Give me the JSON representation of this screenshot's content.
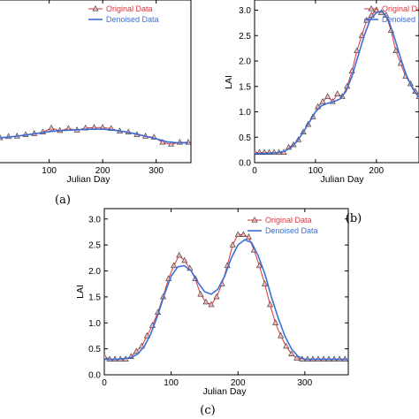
{
  "colors": {
    "original": "#e0303a",
    "denoised": "#3b6fd8",
    "marker_fill": "#f6b4b4",
    "axis": "#000000"
  },
  "chart_data": [
    {
      "type": "line",
      "panel_label": "(a)",
      "xlabel": "Julian Day",
      "ylabel": "",
      "xlim": [
        -25,
        365
      ],
      "ylim": [
        0.0,
        3.2
      ],
      "xticks": [
        100,
        200,
        300
      ],
      "yticks": [],
      "legend_position": "top-right",
      "series": [
        {
          "name": "Original Data",
          "style": "line-triangle",
          "x": [
            -24,
            -8,
            8,
            24,
            40,
            56,
            72,
            88,
            104,
            120,
            136,
            152,
            168,
            184,
            200,
            216,
            232,
            248,
            264,
            280,
            296,
            312,
            328,
            344,
            360
          ],
          "y": [
            0.48,
            0.48,
            0.49,
            0.51,
            0.52,
            0.55,
            0.57,
            0.6,
            0.68,
            0.63,
            0.67,
            0.64,
            0.68,
            0.69,
            0.69,
            0.67,
            0.62,
            0.6,
            0.55,
            0.52,
            0.5,
            0.4,
            0.36,
            0.4,
            0.4
          ]
        },
        {
          "name": "Denoised Data",
          "style": "line",
          "x": [
            -24,
            0,
            20,
            40,
            60,
            80,
            100,
            120,
            140,
            160,
            180,
            200,
            220,
            240,
            260,
            280,
            300,
            320,
            340,
            360
          ],
          "y": [
            0.48,
            0.48,
            0.5,
            0.52,
            0.55,
            0.58,
            0.61,
            0.63,
            0.64,
            0.65,
            0.66,
            0.66,
            0.64,
            0.61,
            0.57,
            0.52,
            0.47,
            0.41,
            0.39,
            0.39
          ]
        }
      ]
    },
    {
      "type": "line",
      "panel_label": "(b)",
      "xlabel": "Julian Day",
      "ylabel": "LAI",
      "xlim": [
        0,
        270
      ],
      "ylim": [
        0.0,
        3.2
      ],
      "xticks": [
        0,
        100,
        200
      ],
      "yticks": [
        "0.0",
        "0.5",
        "1.0",
        "1.5",
        "2.0",
        "2.5",
        "3.0"
      ],
      "legend_position": "top-right",
      "series": [
        {
          "name": "Original Data",
          "style": "line-triangle",
          "x": [
            0,
            8,
            16,
            24,
            32,
            40,
            48,
            56,
            64,
            72,
            80,
            88,
            96,
            104,
            112,
            120,
            128,
            136,
            144,
            152,
            160,
            168,
            176,
            184,
            192,
            200,
            208,
            216,
            224,
            232,
            240,
            248,
            256,
            264,
            270
          ],
          "y": [
            0.2,
            0.2,
            0.2,
            0.2,
            0.2,
            0.2,
            0.2,
            0.3,
            0.35,
            0.45,
            0.6,
            0.75,
            0.9,
            1.1,
            1.2,
            1.3,
            1.2,
            1.35,
            1.3,
            1.5,
            1.8,
            2.2,
            2.5,
            2.8,
            2.9,
            3.0,
            2.95,
            2.9,
            2.6,
            2.2,
            1.95,
            1.7,
            1.55,
            1.4,
            1.3
          ]
        },
        {
          "name": "Denoised Data",
          "style": "line",
          "x": [
            0,
            20,
            40,
            50,
            60,
            70,
            80,
            90,
            100,
            110,
            120,
            130,
            140,
            150,
            160,
            170,
            180,
            190,
            200,
            210,
            220,
            230,
            240,
            250,
            260,
            270
          ],
          "y": [
            0.18,
            0.18,
            0.2,
            0.23,
            0.3,
            0.42,
            0.6,
            0.8,
            1.0,
            1.12,
            1.17,
            1.2,
            1.25,
            1.4,
            1.7,
            2.1,
            2.5,
            2.82,
            2.95,
            2.98,
            2.8,
            2.45,
            2.05,
            1.7,
            1.45,
            1.28
          ]
        }
      ]
    },
    {
      "type": "line",
      "panel_label": "(c)",
      "xlabel": "Julian Day",
      "ylabel": "LAI",
      "xlim": [
        0,
        365
      ],
      "ylim": [
        0.0,
        3.2
      ],
      "xticks": [
        0,
        100,
        200,
        300
      ],
      "yticks": [
        "0.0",
        "0.5",
        "1.0",
        "1.5",
        "2.0",
        "2.5",
        "3.0"
      ],
      "legend_position": "top-right",
      "series": [
        {
          "name": "Original Data",
          "style": "line-triangle",
          "x": [
            0,
            8,
            16,
            24,
            32,
            40,
            48,
            56,
            64,
            72,
            80,
            88,
            96,
            104,
            112,
            120,
            128,
            136,
            144,
            152,
            160,
            168,
            176,
            184,
            192,
            200,
            208,
            216,
            224,
            232,
            240,
            248,
            256,
            264,
            272,
            280,
            288,
            296,
            304,
            312,
            320,
            328,
            336,
            344,
            352,
            360
          ],
          "y": [
            0.35,
            0.3,
            0.3,
            0.3,
            0.3,
            0.35,
            0.45,
            0.55,
            0.75,
            0.95,
            1.2,
            1.5,
            1.85,
            2.1,
            2.3,
            2.2,
            2.05,
            1.85,
            1.55,
            1.4,
            1.35,
            1.5,
            1.75,
            2.1,
            2.5,
            2.7,
            2.7,
            2.65,
            2.4,
            2.1,
            1.75,
            1.35,
            1.0,
            0.75,
            0.55,
            0.4,
            0.32,
            0.3,
            0.3,
            0.3,
            0.3,
            0.3,
            0.3,
            0.3,
            0.3,
            0.3
          ]
        },
        {
          "name": "Denoised Data",
          "style": "line",
          "x": [
            0,
            20,
            40,
            50,
            60,
            70,
            80,
            90,
            100,
            110,
            120,
            130,
            140,
            150,
            160,
            170,
            180,
            190,
            200,
            210,
            220,
            230,
            240,
            250,
            260,
            270,
            280,
            290,
            300,
            320,
            340,
            365
          ],
          "y": [
            0.3,
            0.3,
            0.33,
            0.4,
            0.55,
            0.8,
            1.15,
            1.55,
            1.9,
            2.08,
            2.1,
            2.0,
            1.78,
            1.6,
            1.55,
            1.65,
            1.9,
            2.25,
            2.5,
            2.6,
            2.55,
            2.3,
            1.95,
            1.5,
            1.1,
            0.75,
            0.5,
            0.35,
            0.3,
            0.3,
            0.3,
            0.3
          ]
        }
      ]
    }
  ]
}
